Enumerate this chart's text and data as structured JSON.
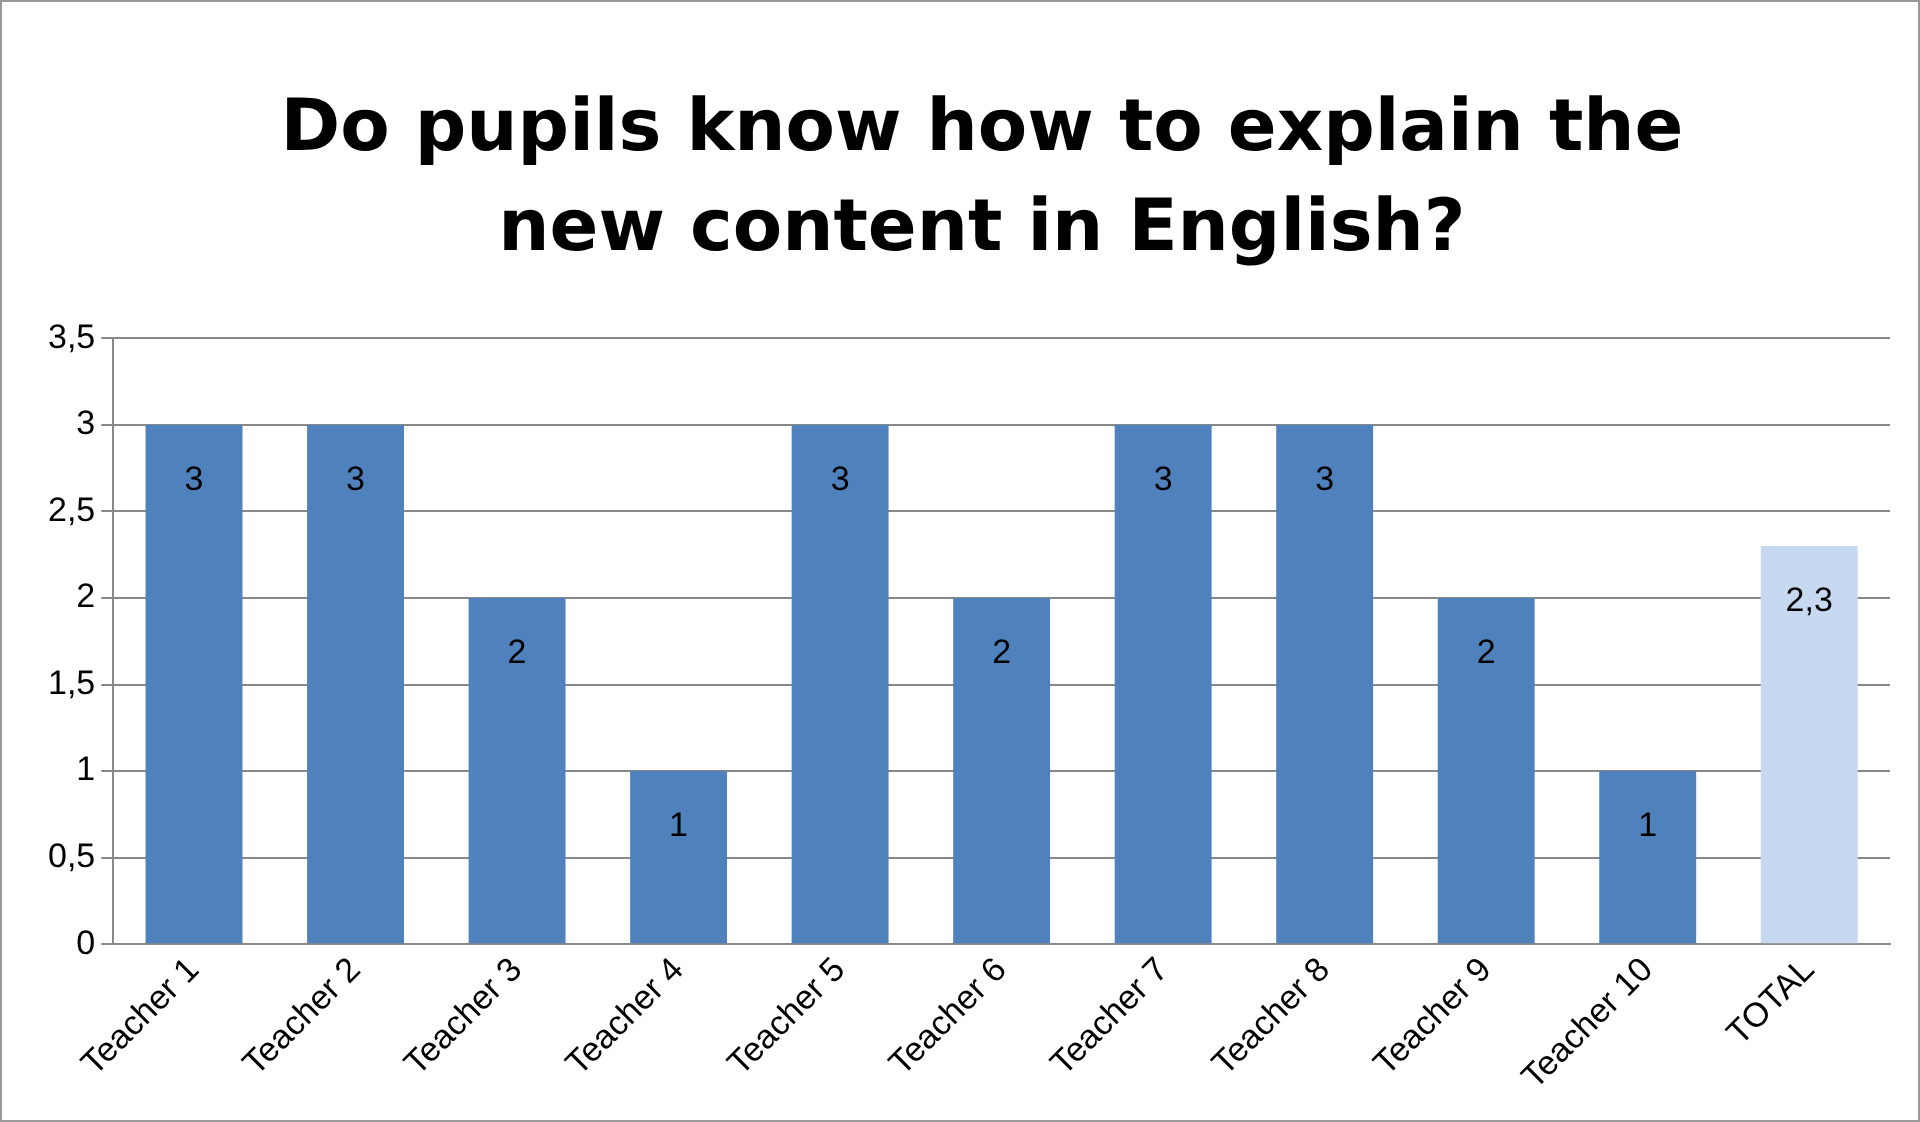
{
  "chart_data": {
    "type": "bar",
    "title": "Do pupils know how to explain the new content in English?",
    "categories": [
      "Teacher 1",
      "Teacher 2",
      "Teacher 3",
      "Teacher 4",
      "Teacher 5",
      "Teacher 6",
      "Teacher 7",
      "Teacher 8",
      "Teacher 9",
      "Teacher 10",
      "TOTAL"
    ],
    "values": [
      3,
      3,
      2,
      1,
      3,
      2,
      3,
      3,
      2,
      1,
      2.3
    ],
    "colors": [
      "#4f81bd",
      "#4f81bd",
      "#4f81bd",
      "#4f81bd",
      "#4f81bd",
      "#4f81bd",
      "#4f81bd",
      "#4f81bd",
      "#4f81bd",
      "#4f81bd",
      "#c6d9f1"
    ],
    "value_labels": [
      "3",
      "3",
      "2",
      "1",
      "3",
      "2",
      "3",
      "3",
      "2",
      "1",
      "2,3"
    ],
    "ylim": [
      0,
      3.5
    ],
    "yticks": [
      0,
      {
        "value": 0.5,
        "label": "0,5"
      },
      1,
      {
        "value": 1.5,
        "label": "1,5"
      },
      2,
      {
        "value": 2.5,
        "label": "2,5"
      },
      3,
      {
        "value": 3.5,
        "label": "3,5"
      }
    ],
    "grid": "y",
    "legend": false
  }
}
